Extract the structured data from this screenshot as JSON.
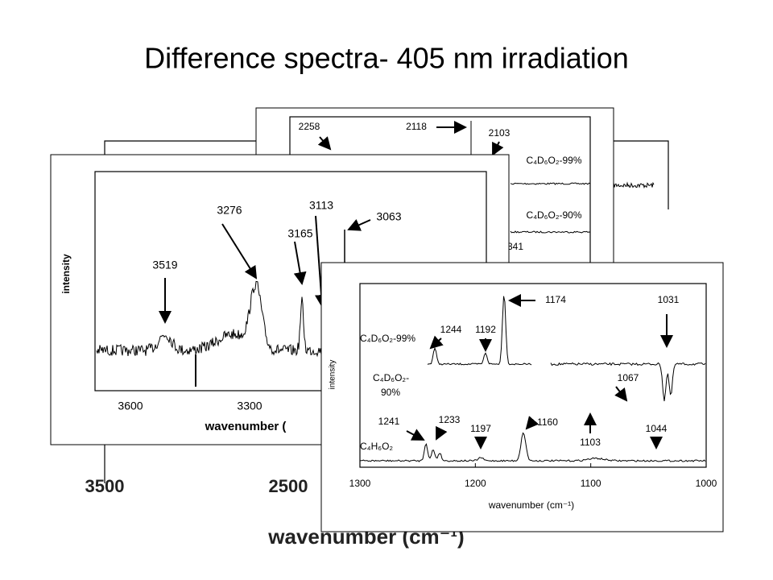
{
  "title": "Difference spectra- 405 nm irradiation",
  "back_panel": {
    "x_ticks": [
      "3500",
      "2500"
    ],
    "x_label": "wavenumber (cm⁻¹)"
  },
  "middle_panel": {
    "peaks": [
      "2258",
      "2118",
      "2103",
      "341"
    ],
    "traces": [
      "C₄D₆O₂-99%",
      "C₄D₆O₂-90%"
    ]
  },
  "left_panel": {
    "y_label": "intensity",
    "x_label": "wavenumber (",
    "x_ticks": [
      "3600",
      "3300"
    ],
    "peaks": [
      "3519",
      "3276",
      "3165",
      "3113",
      "3063"
    ]
  },
  "front_panel": {
    "y_label": "intensity",
    "x_label": "wavenumber (cm⁻¹)",
    "x_ticks": [
      "1300",
      "1200",
      "1100",
      "1000"
    ],
    "peaks": [
      "1174",
      "1031",
      "1244",
      "1192",
      "1067",
      "1241",
      "1233",
      "1197",
      "1160",
      "1103",
      "1044"
    ],
    "traces": [
      [
        "C₄D₆O₂-99%"
      ],
      [
        "C₄D₆O₂-",
        "90%"
      ],
      [
        "C₄H₆O₂"
      ]
    ]
  }
}
